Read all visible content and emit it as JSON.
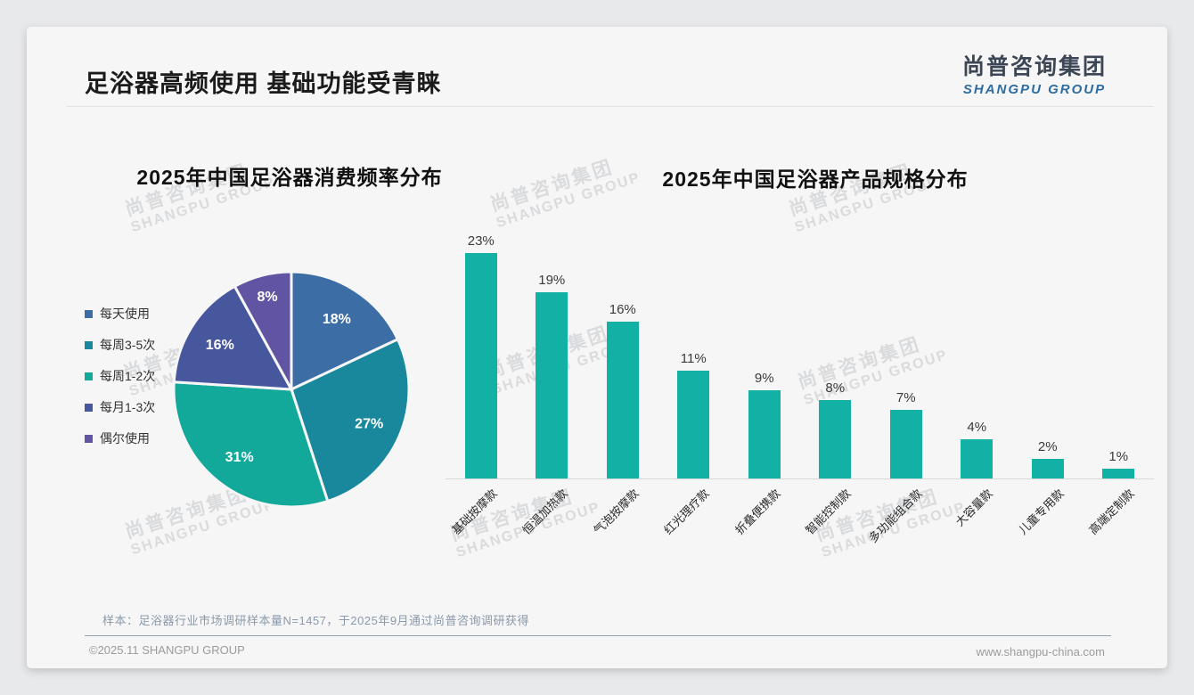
{
  "page": {
    "title": "足浴器高频使用 基础功能受青睐",
    "logo": {
      "cn": "尚普咨询集团",
      "en": "SHANGPU GROUP"
    },
    "watermark": {
      "cn": "尚普咨询集团",
      "en": "SHANGPU GROUP"
    },
    "footnote": "样本：足浴器行业市场调研样本量N=1457，于2025年9月通过尚普咨询调研获得",
    "footer_left": "©2025.11 SHANGPU GROUP",
    "footer_right": "www.shangpu-china.com"
  },
  "colors": {
    "slide_bg": "#f6f6f7",
    "outer_bg": "#e8e9eb",
    "bar_teal": "#13B0A6",
    "logo_blue": "#2d6ca2",
    "footnote_gray_blue": "#8a99ab"
  },
  "chart_data": [
    {
      "type": "pie",
      "title": "2025年中国足浴器消费频率分布",
      "labels": [
        "每天使用",
        "每周3-5次",
        "每周1-2次",
        "每月1-3次",
        "偶尔使用"
      ],
      "values": [
        18,
        27,
        31,
        16,
        8
      ],
      "colors": [
        "#3C6DA4",
        "#19889C",
        "#12A89A",
        "#47579E",
        "#6154A3"
      ],
      "value_suffix": "%",
      "label_position": "inside",
      "legend_position": "left",
      "start_angle_deg": 0,
      "direction": "clockwise"
    },
    {
      "type": "bar",
      "title": "2025年中国足浴器产品规格分布",
      "categories": [
        "基础按摩款",
        "恒温加热款",
        "气泡按摩款",
        "红光理疗款",
        "折叠便携款",
        "智能控制款",
        "多功能组合款",
        "大容量款",
        "儿童专用款",
        "高端定制款"
      ],
      "values": [
        23,
        19,
        16,
        11,
        9,
        8,
        7,
        4,
        2,
        1
      ],
      "bar_color": "#13B0A6",
      "value_suffix": "%",
      "ylim": [
        0,
        25
      ],
      "grid": false,
      "legend": false,
      "xlabel_rotation_deg": -45
    }
  ]
}
